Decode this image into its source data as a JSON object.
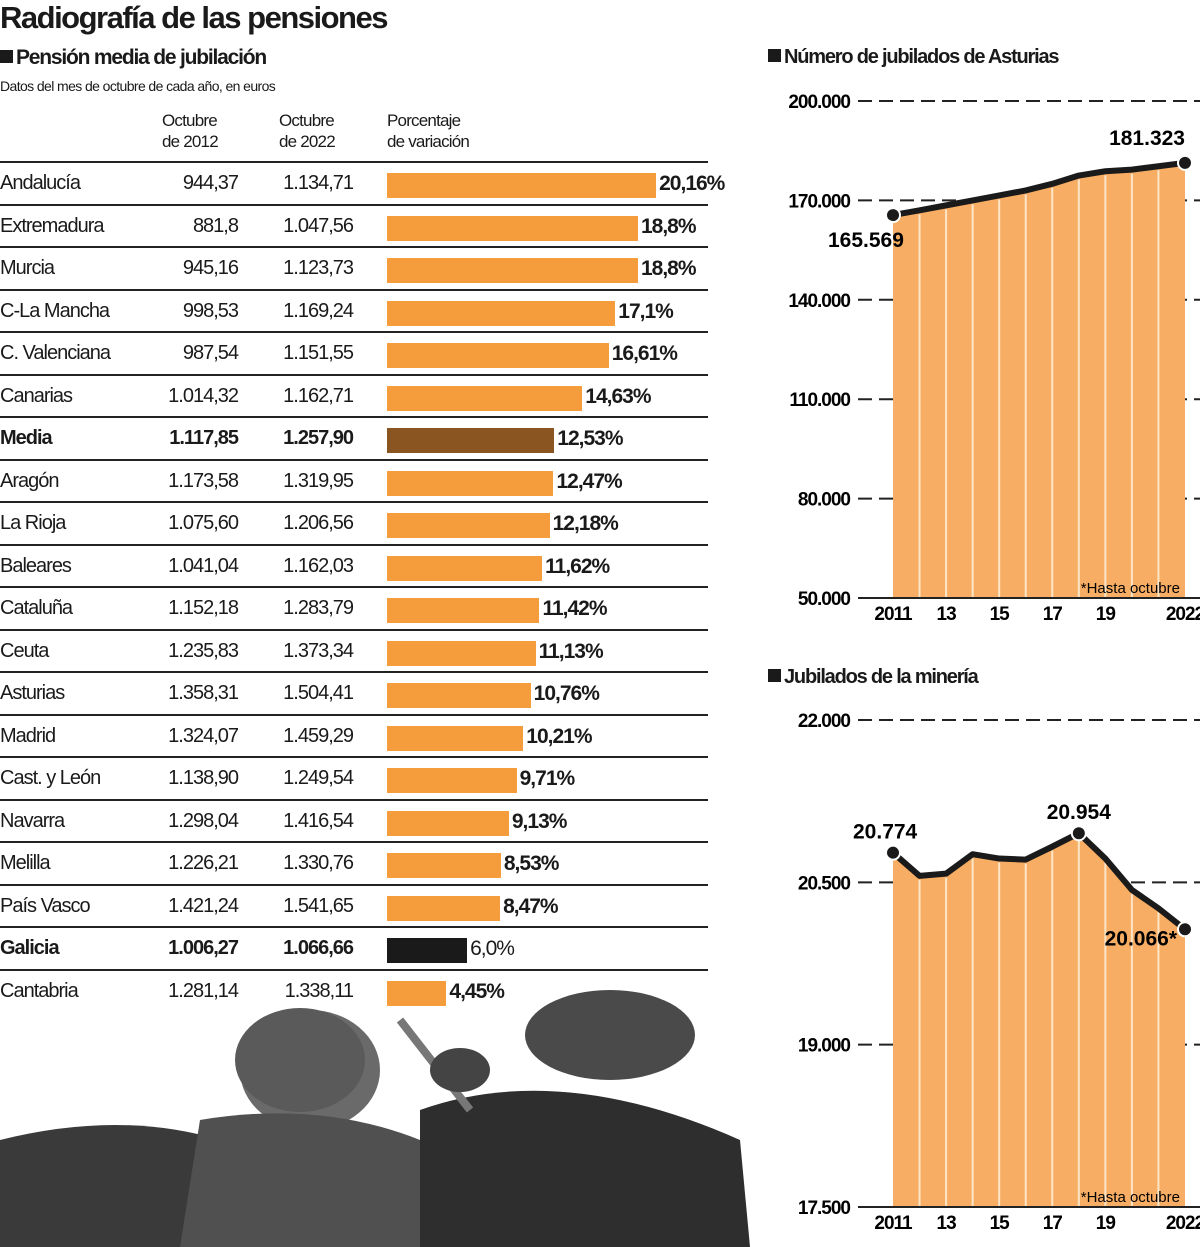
{
  "title": "Radiografía de las pensiones",
  "table": {
    "section_title": "Pensión media de jubilación",
    "subtitle": "Datos del mes de octubre de cada año, en euros",
    "headers": {
      "col2012": [
        "Octubre",
        "de 2012"
      ],
      "col2022": [
        "Octubre",
        "de 2022"
      ],
      "colpct": [
        "Porcentaje",
        "de variación"
      ]
    },
    "colors": {
      "default": "#f59d3d",
      "media": "#8a5520",
      "galicia": "#1a1a1a"
    },
    "rows": [
      {
        "region": "Andalucía",
        "v2012": "944,37",
        "v2022": "1.134,71",
        "pct_label": "20,16%",
        "pct": 20.16,
        "bold": false,
        "color": "default"
      },
      {
        "region": "Extremadura",
        "v2012": "881,8",
        "v2022": "1.047,56",
        "pct_label": "18,8%",
        "pct": 18.8,
        "bold": false,
        "color": "default"
      },
      {
        "region": "Murcia",
        "v2012": "945,16",
        "v2022": "1.123,73",
        "pct_label": "18,8%",
        "pct": 18.8,
        "bold": false,
        "color": "default"
      },
      {
        "region": "C-La Mancha",
        "v2012": "998,53",
        "v2022": "1.169,24",
        "pct_label": "17,1%",
        "pct": 17.1,
        "bold": false,
        "color": "default"
      },
      {
        "region": "C. Valenciana",
        "v2012": "987,54",
        "v2022": "1.151,55",
        "pct_label": "16,61%",
        "pct": 16.61,
        "bold": false,
        "color": "default"
      },
      {
        "region": "Canarias",
        "v2012": "1.014,32",
        "v2022": "1.162,71",
        "pct_label": "14,63%",
        "pct": 14.63,
        "bold": false,
        "color": "default"
      },
      {
        "region": "Media",
        "v2012": "1.117,85",
        "v2022": "1.257,90",
        "pct_label": "12,53%",
        "pct": 12.53,
        "bold": true,
        "color": "media"
      },
      {
        "region": "Aragón",
        "v2012": "1.173,58",
        "v2022": "1.319,95",
        "pct_label": "12,47%",
        "pct": 12.47,
        "bold": false,
        "color": "default"
      },
      {
        "region": "La Rioja",
        "v2012": "1.075,60",
        "v2022": "1.206,56",
        "pct_label": "12,18%",
        "pct": 12.18,
        "bold": false,
        "color": "default"
      },
      {
        "region": "Baleares",
        "v2012": "1.041,04",
        "v2022": "1.162,03",
        "pct_label": "11,62%",
        "pct": 11.62,
        "bold": false,
        "color": "default"
      },
      {
        "region": "Cataluña",
        "v2012": "1.152,18",
        "v2022": "1.283,79",
        "pct_label": "11,42%",
        "pct": 11.42,
        "bold": false,
        "color": "default"
      },
      {
        "region": "Ceuta",
        "v2012": "1.235,83",
        "v2022": "1.373,34",
        "pct_label": "11,13%",
        "pct": 11.13,
        "bold": false,
        "color": "default"
      },
      {
        "region": "Asturias",
        "v2012": "1.358,31",
        "v2022": "1.504,41",
        "pct_label": "10,76%",
        "pct": 10.76,
        "bold": false,
        "color": "default"
      },
      {
        "region": "Madrid",
        "v2012": "1.324,07",
        "v2022": "1.459,29",
        "pct_label": "10,21%",
        "pct": 10.21,
        "bold": false,
        "color": "default"
      },
      {
        "region": "Cast. y León",
        "v2012": "1.138,90",
        "v2022": "1.249,54",
        "pct_label": "9,71%",
        "pct": 9.71,
        "bold": false,
        "color": "default"
      },
      {
        "region": "Navarra",
        "v2012": "1.298,04",
        "v2022": "1.416,54",
        "pct_label": "9,13%",
        "pct": 9.13,
        "bold": false,
        "color": "default"
      },
      {
        "region": "Melilla",
        "v2012": "1.226,21",
        "v2022": "1.330,76",
        "pct_label": "8,53%",
        "pct": 8.53,
        "bold": false,
        "color": "default"
      },
      {
        "region": "País Vasco",
        "v2012": "1.421,24",
        "v2022": "1.541,65",
        "pct_label": "8,47%",
        "pct": 8.47,
        "bold": false,
        "color": "default"
      },
      {
        "region": "Galicia",
        "v2012": "1.006,27",
        "v2022": "1.066,66",
        "pct_label": "6,0%",
        "pct": 6.0,
        "bold": true,
        "color": "galicia"
      },
      {
        "region": "Cantabria",
        "v2012": "1.281,14",
        "v2022": "1.338,11",
        "pct_label": "4,45%",
        "pct": 4.45,
        "bold": false,
        "color": "default"
      }
    ]
  },
  "chart_data": [
    {
      "type": "area",
      "title": "Número de jubilados de Asturias",
      "x": [
        2011,
        2012,
        2013,
        2014,
        2015,
        2016,
        2017,
        2018,
        2019,
        2020,
        2021,
        2022
      ],
      "x_tick_labels": [
        "2011",
        "13",
        "15",
        "17",
        "19",
        "2022"
      ],
      "x_tick_values": [
        2011,
        2013,
        2015,
        2017,
        2019,
        2022
      ],
      "values": [
        165569,
        167000,
        168500,
        170000,
        171500,
        173000,
        175000,
        177500,
        178800,
        179300,
        180300,
        181323
      ],
      "y_ticks": [
        50000,
        80000,
        110000,
        140000,
        170000,
        200000
      ],
      "y_tick_labels": [
        "50.000",
        "80.000",
        "110.000",
        "140.000",
        "170.000",
        "200.000"
      ],
      "ylim": [
        50000,
        200000
      ],
      "annotations": [
        {
          "x": 2011,
          "label": "165.569"
        },
        {
          "x": 2022,
          "label": "181.323"
        }
      ],
      "note": "*Hasta octubre",
      "fill_color": "#f7ad63",
      "grid": "dashed"
    },
    {
      "type": "area",
      "title": "Jubilados de la minería",
      "x": [
        2011,
        2012,
        2013,
        2014,
        2015,
        2016,
        2017,
        2018,
        2019,
        2020,
        2021,
        2022
      ],
      "x_tick_labels": [
        "2011",
        "13",
        "15",
        "17",
        "19",
        "2022"
      ],
      "x_tick_values": [
        2011,
        2013,
        2015,
        2017,
        2019,
        2022
      ],
      "values": [
        20774,
        20560,
        20580,
        20760,
        20720,
        20710,
        20830,
        20954,
        20720,
        20430,
        20260,
        20066
      ],
      "y_ticks": [
        17500,
        19000,
        20500,
        22000
      ],
      "y_tick_labels": [
        "17.500",
        "19.000",
        "20.500",
        "22.000"
      ],
      "ylim": [
        17500,
        22000
      ],
      "annotations": [
        {
          "x": 2011,
          "label": "20.774"
        },
        {
          "x": 2018,
          "label": "20.954"
        },
        {
          "x": 2022,
          "label": "20.066*"
        }
      ],
      "note": "*Hasta octubre",
      "fill_color": "#f7ad63",
      "grid": "dashed"
    }
  ]
}
